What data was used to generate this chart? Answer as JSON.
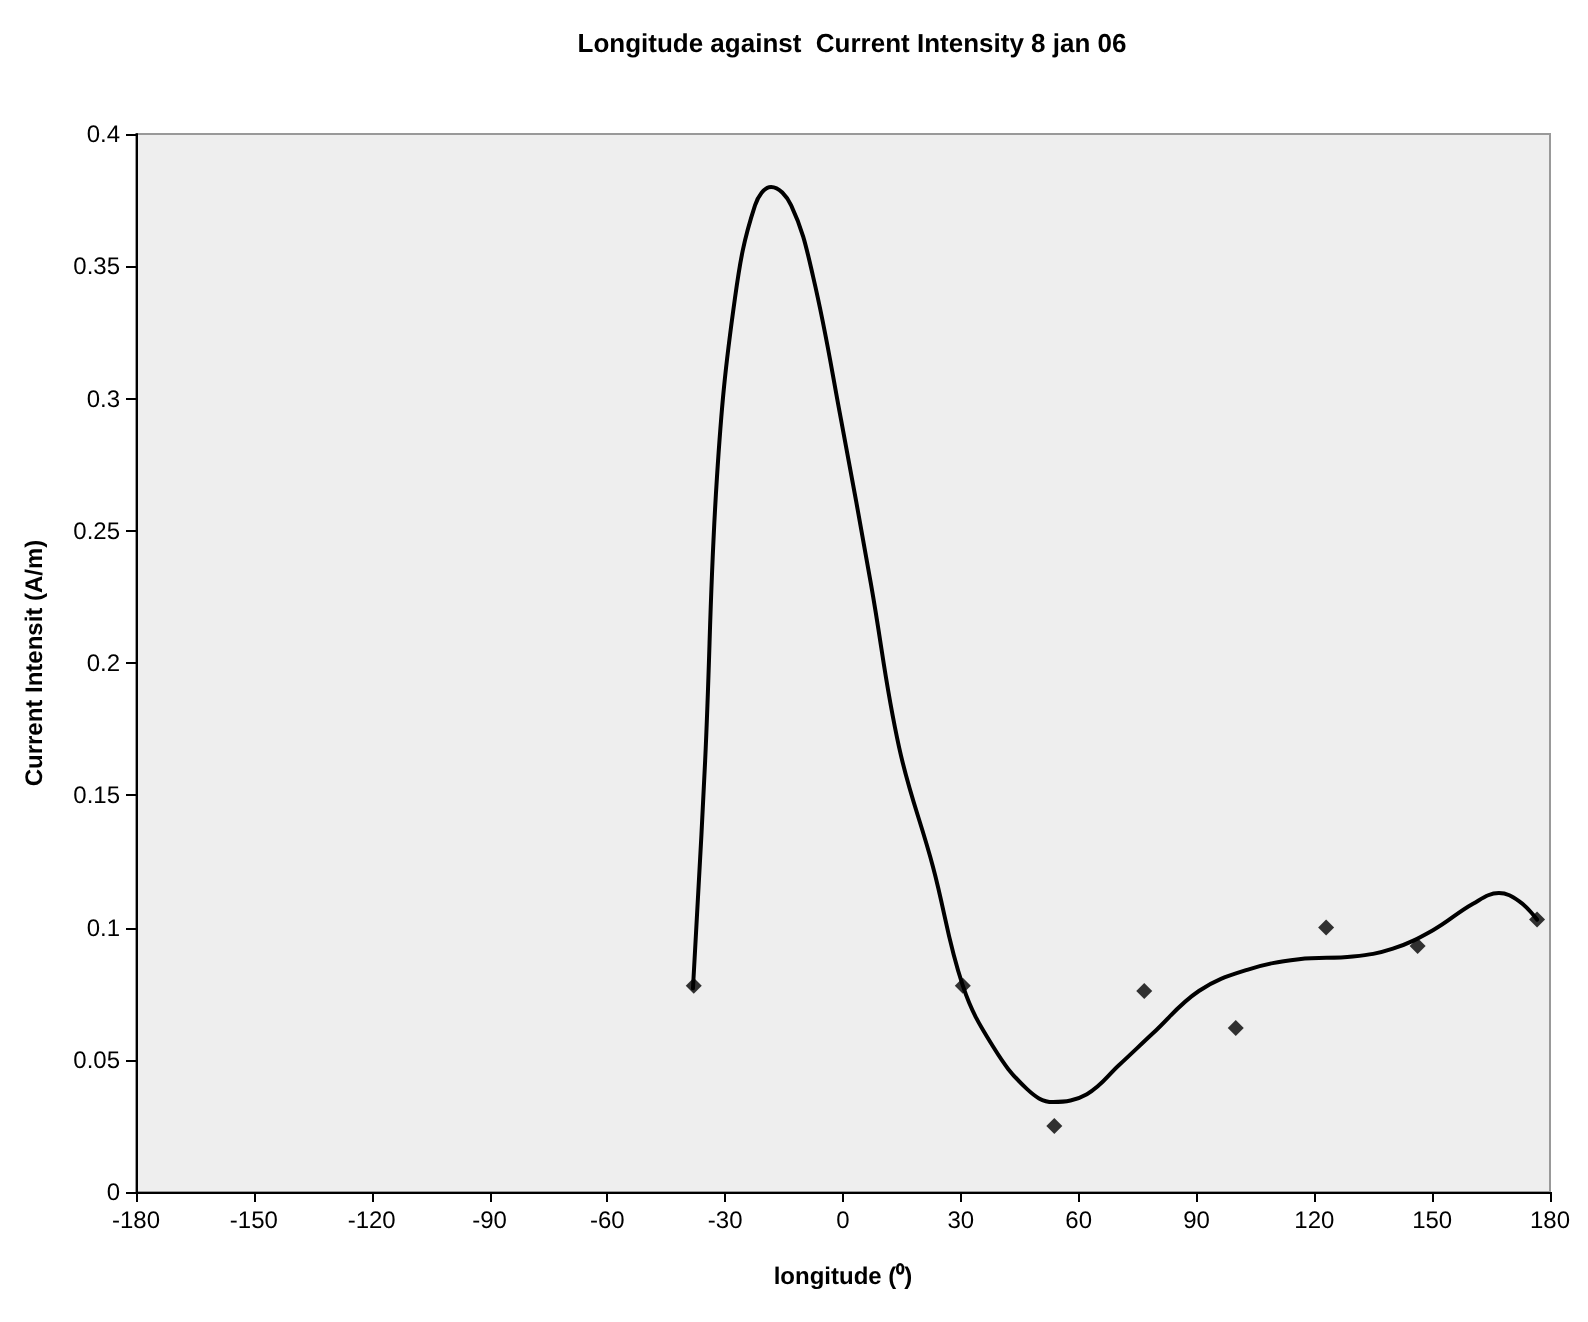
{
  "chart_data": {
    "type": "scatter",
    "title": "Longitude against  Current Intensity 8 jan 06",
    "xlabel": "longitude (⁰)",
    "ylabel": "Current Intensit (A/m)",
    "xlim": [
      -180,
      180
    ],
    "xticks": [
      -180,
      -150,
      -120,
      -90,
      -60,
      -30,
      0,
      30,
      60,
      90,
      120,
      150,
      180
    ],
    "ylim": [
      0,
      0.4
    ],
    "yticks": [
      0,
      0.05,
      0.1,
      0.15,
      0.2,
      0.25,
      0.3,
      0.35,
      0.4
    ],
    "grid": false,
    "series": [
      {
        "type": "scatter",
        "color": "#000000",
        "marker": "diamond",
        "x": [
          -38,
          30.5,
          53.8,
          76.7,
          100,
          123,
          146.3,
          176.7
        ],
        "values": [
          0.078,
          0.078,
          0.025,
          0.076,
          0.062,
          0.1,
          0.093,
          0.103
        ]
      },
      {
        "type": "line",
        "color": "#000000",
        "marker": "none",
        "line_style": "solid",
        "x": [
          -38.2,
          -35.1,
          -32.1,
          -27.5,
          -22.4,
          -18.3,
          -13.2,
          -7.6,
          -0.5,
          7.1,
          14.3,
          22.9,
          30.5,
          38.2,
          46.8,
          53.5,
          62.1,
          70.3,
          78.9,
          90.6,
          102.9,
          116.1,
          129.8,
          140,
          150.2,
          160.4,
          167,
          172.1,
          176.7
        ],
        "values": [
          0.077,
          0.163,
          0.27,
          0.338,
          0.373,
          0.38,
          0.373,
          0.346,
          0.292,
          0.23,
          0.168,
          0.123,
          0.078,
          0.055,
          0.039,
          0.034,
          0.037,
          0.048,
          0.06,
          0.076,
          0.084,
          0.088,
          0.089,
          0.092,
          0.099,
          0.109,
          0.113,
          0.11,
          0.103
        ]
      }
    ]
  }
}
